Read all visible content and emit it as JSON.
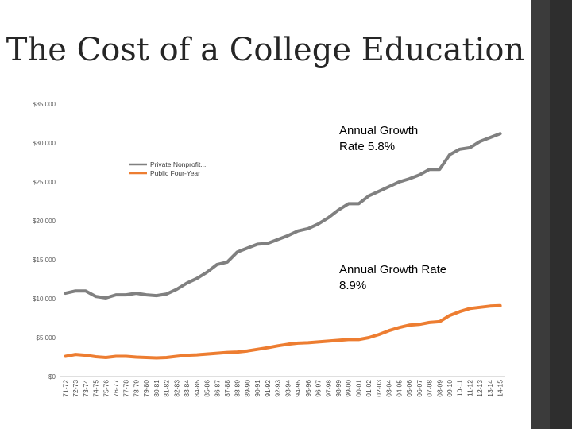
{
  "chart_data": {
    "type": "line",
    "title": "The Cost of a College Education",
    "xlabel": "",
    "ylabel": "",
    "ylim": [
      0,
      35000
    ],
    "y_ticks": [
      "$0",
      "$5,000",
      "$10,000",
      "$15,000",
      "$20,000",
      "$25,000",
      "$30,000",
      "$35,000"
    ],
    "y_tick_values": [
      0,
      5000,
      10000,
      15000,
      20000,
      25000,
      30000,
      35000
    ],
    "grid": false,
    "legend_position": "upper-left",
    "categories": [
      "71-72",
      "72-73",
      "73-74",
      "74-75",
      "75-76",
      "76-77",
      "77-78",
      "78-79",
      "79-80",
      "80-81",
      "81-82",
      "82-83",
      "83-84",
      "84-85",
      "85-86",
      "86-87",
      "87-88",
      "88-89",
      "89-90",
      "90-91",
      "91-92",
      "92-93",
      "93-94",
      "94-95",
      "95-96",
      "96-97",
      "97-98",
      "98-99",
      "99-00",
      "00-01",
      "01-02",
      "02-03",
      "03-04",
      "04-05",
      "05-06",
      "06-07",
      "07-08",
      "08-09",
      "09-10",
      "10-11",
      "11-12",
      "12-13",
      "13-14",
      "14-15"
    ],
    "series": [
      {
        "name": "Private Nonprofit...",
        "color": "#808080",
        "values": [
          10700,
          11000,
          11000,
          10300,
          10100,
          10500,
          10500,
          10700,
          10500,
          10400,
          10600,
          11200,
          12000,
          12600,
          13400,
          14400,
          14700,
          16000,
          16500,
          17000,
          17100,
          17600,
          18100,
          18700,
          19000,
          19600,
          20400,
          21400,
          22200,
          22200,
          23200,
          23800,
          24400,
          25000,
          25400,
          25900,
          26600,
          26600,
          28500,
          29200,
          29400,
          30200,
          30700,
          31200
        ],
        "annotation": "Annual Growth Rate 5.8%"
      },
      {
        "name": "Public Four-Year",
        "color": "#ed7d31",
        "values": [
          2600,
          2850,
          2750,
          2550,
          2450,
          2600,
          2600,
          2500,
          2450,
          2400,
          2450,
          2600,
          2750,
          2800,
          2900,
          3000,
          3100,
          3150,
          3300,
          3500,
          3700,
          3950,
          4150,
          4300,
          4350,
          4450,
          4550,
          4650,
          4750,
          4750,
          5000,
          5400,
          5900,
          6300,
          6600,
          6700,
          6950,
          7050,
          7850,
          8350,
          8750,
          8900,
          9050,
          9100
        ],
        "annotation": "Annual Growth Rate 8.9%"
      }
    ]
  },
  "annotations": {
    "private_growth": "Annual Growth Rate 5.8%",
    "public_growth": "Annual Growth Rate 8.9%"
  }
}
